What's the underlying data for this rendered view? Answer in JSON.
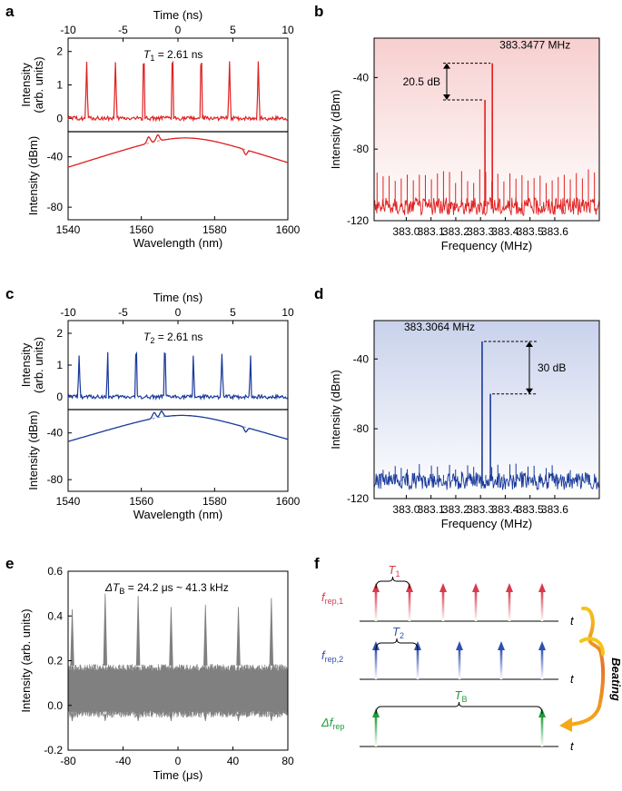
{
  "figure": {
    "panel_labels": [
      "a",
      "b",
      "c",
      "d",
      "e",
      "f"
    ]
  },
  "chart_data": [
    {
      "id": "a",
      "type": "line",
      "panels": [
        {
          "role": "top",
          "title": "Time (ns)",
          "xlim": [
            -10,
            10
          ],
          "xticks": [
            "-10",
            "-5",
            "0",
            "5",
            "10"
          ],
          "ylim": [
            -0.4,
            2.4
          ],
          "yticks": [
            "0",
            "1",
            "2"
          ],
          "ylabel": [
            "Intensity",
            "(arb. units)"
          ],
          "pulses_ns": [
            -8.3,
            -5.7,
            -3.1,
            -0.5,
            2.1,
            4.7,
            7.3
          ],
          "pulse_height": 1.65,
          "color": "#e02020",
          "annotation": {
            "pre": "T",
            "sub": "1",
            "post": " = 2.61 ns"
          }
        },
        {
          "role": "bottom",
          "xlabel": "Wavelength (nm)",
          "xlim": [
            1540,
            1600
          ],
          "xticks": [
            "1540",
            "1560",
            "1580",
            "1600"
          ],
          "ylim": [
            -90,
            -20
          ],
          "yticks": [
            "-80",
            "-40"
          ],
          "ylabel": "Intensity (dBm)",
          "center_nm": 1572,
          "peak_dbm": -25,
          "features_nm": [
            1562,
            1564.5,
            1588.5
          ],
          "color": "#e02020",
          "fit_color": "#e88080"
        }
      ]
    },
    {
      "id": "b",
      "type": "spectrum",
      "xlabel": "Frequency (MHz)",
      "ylabel": "Intensity (dBm)",
      "xlim": [
        382.87,
        383.78
      ],
      "xticks": [
        "383.0",
        "383.1",
        "383.2",
        "383.3",
        "383.4",
        "383.5",
        "383.6"
      ],
      "ylim": [
        -120,
        -18
      ],
      "yticks": [
        "-40",
        "-80",
        "-120"
      ],
      "noise_floor_dbm": -112,
      "comb_spacing_mhz": 0.0244,
      "comb_level_dbm": -95,
      "main_peak": {
        "freq": 383.3477,
        "dbm": -32
      },
      "side_peak": {
        "freq": 383.318,
        "dbm": -52.5
      },
      "peak_label": "383.3477 MHz",
      "diff_label": "20.5 dB",
      "color": "#e02020",
      "bg_top": "#f7cfcf",
      "bg_bottom": "#ffffff"
    },
    {
      "id": "c",
      "type": "line",
      "panels": [
        {
          "role": "top",
          "title": "Time (ns)",
          "xlim": [
            -10,
            10
          ],
          "xticks": [
            "-10",
            "-5",
            "0",
            "5",
            "10"
          ],
          "ylim": [
            -0.4,
            2.4
          ],
          "yticks": [
            "0",
            "1",
            "2"
          ],
          "ylabel": [
            "Intensity",
            "(arb. units)"
          ],
          "pulses_ns": [
            -9.0,
            -6.4,
            -3.8,
            -1.2,
            1.4,
            4.0,
            6.6
          ],
          "pulse_height": 1.35,
          "color": "#1a3a9a",
          "annotation": {
            "pre": "T",
            "sub": "2",
            "post": " = 2.61 ns"
          }
        },
        {
          "role": "bottom",
          "xlabel": "Wavelength (nm)",
          "xlim": [
            1540,
            1600
          ],
          "xticks": [
            "1540",
            "1560",
            "1580",
            "1600"
          ],
          "ylim": [
            -90,
            -20
          ],
          "yticks": [
            "-80",
            "-40"
          ],
          "ylabel": "Intensity (dBm)",
          "center_nm": 1571,
          "peak_dbm": -25,
          "features_nm": [
            1563.5,
            1565.5,
            1588.5
          ],
          "color": "#1a3a9a",
          "fit_color": "#8090c8"
        }
      ]
    },
    {
      "id": "d",
      "type": "spectrum",
      "xlabel": "Frequency (MHz)",
      "ylabel": "Intensity (dBm)",
      "xlim": [
        382.87,
        383.78
      ],
      "xticks": [
        "383.0",
        "383.1",
        "383.2",
        "383.3",
        "383.4",
        "383.5",
        "383.6"
      ],
      "ylim": [
        -120,
        -18
      ],
      "yticks": [
        "-40",
        "-80",
        "-120"
      ],
      "noise_floor_dbm": -110,
      "comb_spacing_mhz": 0.0244,
      "comb_level_dbm": -104,
      "main_peak": {
        "freq": 383.3064,
        "dbm": -30
      },
      "side_peak": {
        "freq": 383.34,
        "dbm": -60
      },
      "peak_label": "383.3064 MHz",
      "diff_label": "30 dB",
      "color": "#1a3a9a",
      "bg_top": "#c9d2ec",
      "bg_bottom": "#ffffff"
    },
    {
      "id": "e",
      "type": "line",
      "xlabel": "Time (μs)",
      "ylabel": "Intensity (arb. units)",
      "xlim": [
        -80,
        80
      ],
      "xticks": [
        "-80",
        "-40",
        "0",
        "40",
        "80"
      ],
      "ylim": [
        -0.2,
        0.6
      ],
      "yticks": [
        "-0.2",
        "0.0",
        "0.2",
        "0.4",
        "0.6"
      ],
      "band": [
        -0.04,
        0.18
      ],
      "peaks": [
        {
          "t": -77,
          "v": 0.43
        },
        {
          "t": -53,
          "v": 0.5
        },
        {
          "t": -29,
          "v": 0.49
        },
        {
          "t": -5,
          "v": 0.44
        },
        {
          "t": 20,
          "v": 0.45
        },
        {
          "t": 44,
          "v": 0.44
        },
        {
          "t": 68,
          "v": 0.48
        }
      ],
      "annotation": {
        "pre": "ΔT",
        "sub": "B",
        "post": " = 24.2 μs ~ 41.3 kHz"
      },
      "color": "#808080"
    },
    {
      "id": "f",
      "type": "diagram",
      "rows": [
        {
          "label": "f",
          "sub": "rep,1",
          "color": "#d83a4a",
          "arrows": 6,
          "bracket": "T",
          "bracket_sub": "1",
          "bracket_color": "#d83a4a"
        },
        {
          "label": "f",
          "sub": "rep,2",
          "color": "#3050b0",
          "arrows": 5,
          "bracket": "T",
          "bracket_sub": "2",
          "bracket_color": "#3050b0"
        },
        {
          "label": "Δf",
          "sub": "rep",
          "color": "#1f9a3a",
          "arrows": 2,
          "bracket": "T",
          "bracket_sub": "B",
          "bracket_color": "#1f9a3a"
        }
      ],
      "axis_label": "t",
      "side_label": "Beating",
      "side_color": "#e8742a"
    }
  ]
}
